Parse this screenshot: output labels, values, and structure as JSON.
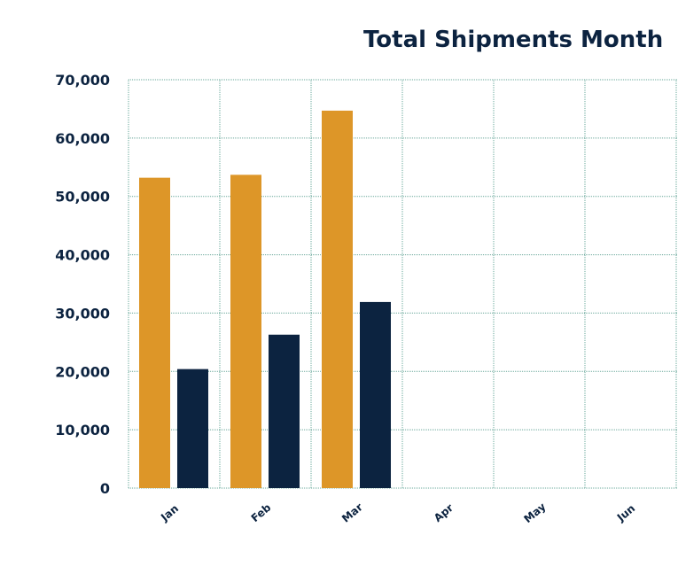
{
  "chart_data": {
    "type": "bar",
    "title": "Total Shipments Month",
    "categories": [
      "Jan",
      "Feb",
      "Mar",
      "Apr",
      "May",
      "Jun"
    ],
    "series": [
      {
        "values": [
          53200,
          53700,
          64700,
          null,
          null,
          null
        ],
        "color": "#dd9628"
      },
      {
        "values": [
          20400,
          26300,
          31900,
          null,
          null,
          null
        ],
        "color": "#0c2340"
      }
    ],
    "y_ticks": [
      "0",
      "10,000",
      "20,000",
      "30,000",
      "40,000",
      "50,000",
      "60,000",
      "70,000"
    ],
    "ylim": [
      0,
      70000
    ],
    "xlabel": "",
    "ylabel": "",
    "grid": true
  }
}
